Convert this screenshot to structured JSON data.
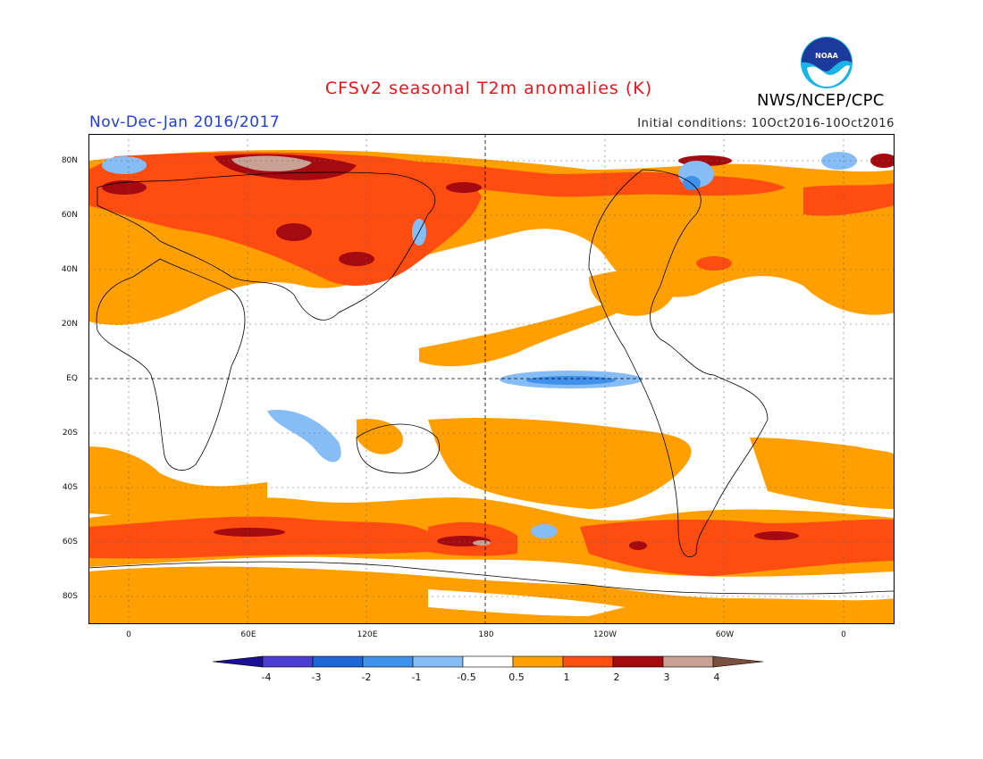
{
  "title": "CFSv2 seasonal T2m anomalies (K)",
  "period": "Nov-Dec-Jan 2016/2017",
  "initial_conditions": "Initial conditions: 10Oct2016-10Oct2016",
  "agency": "NWS/NCEP/CPC",
  "logo_text": "NOAA",
  "lat_labels": [
    "80N",
    "60N",
    "40N",
    "20N",
    "EQ",
    "20S",
    "40S",
    "60S",
    "80S"
  ],
  "lon_labels": [
    "0",
    "60E",
    "120E",
    "180",
    "120W",
    "60W",
    "0"
  ],
  "legend": {
    "levels": [
      "-4",
      "-3",
      "-2",
      "-1",
      "-0.5",
      "0.5",
      "1",
      "2",
      "3",
      "4"
    ],
    "colors": [
      "#1b0f96",
      "#4a3fd0",
      "#1c66d6",
      "#3f91eb",
      "#86bdf6",
      "#ffffff",
      "#ffa000",
      "#ff4d12",
      "#a50a10",
      "#c9a195",
      "#7a4f3e"
    ]
  },
  "colors": {
    "warm1": "#ffa000",
    "warm2": "#ff4d12",
    "warm3": "#a50a10",
    "warm4": "#c9a195",
    "cool1": "#86bdf6",
    "cool2": "#3f91eb"
  }
}
